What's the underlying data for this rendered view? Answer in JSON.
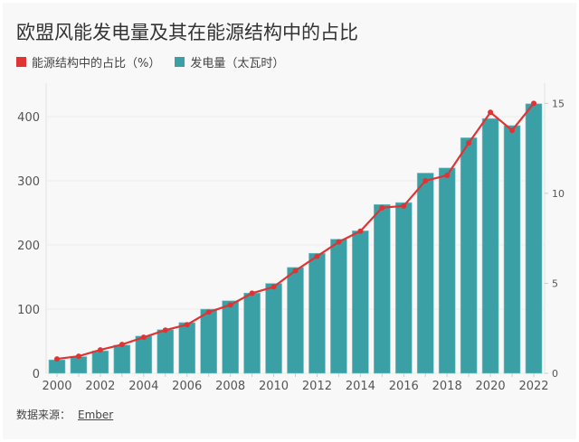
{
  "title": "欧盟风能发电量及其在能源结构中的占比",
  "legend": [
    {
      "label": "能源结构中的占比（%）",
      "color": "#e03434"
    },
    {
      "label": "发电量（太瓦时）",
      "color": "#3aa0a5"
    }
  ],
  "source": {
    "label": "数据来源：",
    "link": "Ember"
  },
  "chart_data": {
    "type": "bar+line",
    "title": "欧盟风能发电量及其在能源结构中的占比",
    "categories": [
      2000,
      2001,
      2002,
      2003,
      2004,
      2005,
      2006,
      2007,
      2008,
      2009,
      2010,
      2011,
      2012,
      2013,
      2014,
      2015,
      2016,
      2017,
      2018,
      2019,
      2020,
      2021,
      2022
    ],
    "x_tick_labels": [
      "2000",
      "2002",
      "2004",
      "2006",
      "2008",
      "2010",
      "2012",
      "2014",
      "2016",
      "2018",
      "2020",
      "2022"
    ],
    "series": [
      {
        "name": "发电量（太瓦时）",
        "type": "bar",
        "axis": "left",
        "color": "#3aa0a5",
        "values": [
          21,
          26,
          35,
          44,
          58,
          68,
          79,
          100,
          113,
          125,
          140,
          165,
          187,
          209,
          222,
          263,
          266,
          312,
          320,
          367,
          397,
          386,
          420
        ]
      },
      {
        "name": "能源结构中的占比（%）",
        "type": "line",
        "axis": "right",
        "color": "#e03434",
        "values": [
          0.8,
          0.95,
          1.3,
          1.6,
          2.0,
          2.4,
          2.7,
          3.4,
          3.8,
          4.45,
          4.8,
          5.7,
          6.5,
          7.3,
          7.9,
          9.2,
          9.3,
          10.7,
          11.0,
          12.8,
          14.5,
          13.5,
          15.0
        ]
      }
    ],
    "y_left": {
      "ylim": [
        0,
        450
      ],
      "ticks": [
        0,
        100,
        200,
        300,
        400
      ]
    },
    "y_right": {
      "ylim": [
        0,
        15.5
      ],
      "ticks": [
        0,
        5,
        10,
        15
      ]
    },
    "grid": true,
    "legend_position": "top-left"
  }
}
